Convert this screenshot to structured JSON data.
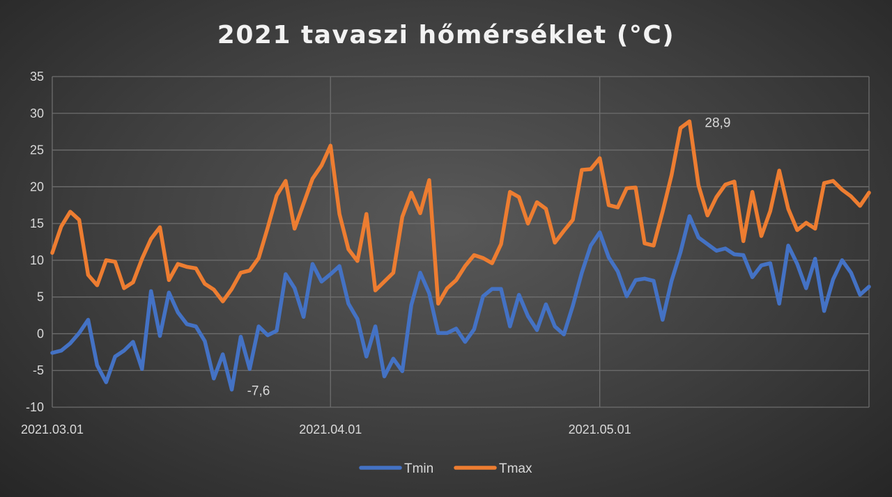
{
  "chart_data": {
    "type": "line",
    "title": "2021 tavaszi hőmérséklet (°C)",
    "xlabel": "",
    "ylabel": "",
    "ylim": [
      -10,
      35
    ],
    "y_ticks": [
      "35",
      "30",
      "25",
      "20",
      "15",
      "10",
      "5",
      "0",
      "-5",
      "-10"
    ],
    "x_range": [
      "2021.03.01",
      "2021.05.31"
    ],
    "x_tick_labels": [
      "2021.03.01",
      "2021.04.01",
      "2021.05.01"
    ],
    "grid": true,
    "legend_position": "bottom",
    "colors": {
      "Tmin": "#4472c4",
      "Tmax": "#ed7d31"
    },
    "series": [
      {
        "name": "Tmin",
        "values": [
          -2.6,
          -2.3,
          -1.3,
          0.1,
          1.9,
          -4.3,
          -6.6,
          -3.1,
          -2.3,
          -1.1,
          -4.8,
          5.8,
          -0.3,
          5.6,
          2.9,
          1.3,
          1.0,
          -1.0,
          -6.1,
          -2.8,
          -7.6,
          -0.4,
          -4.8,
          1.0,
          -0.2,
          0.4,
          8.1,
          6.2,
          2.3,
          9.5,
          7.1,
          8.1,
          9.2,
          4.1,
          2.0,
          -3.1,
          1.0,
          -5.8,
          -3.4,
          -5.1,
          3.9,
          8.3,
          5.5,
          0.1,
          0.1,
          0.7,
          -1.1,
          0.6,
          5.1,
          6.1,
          6.1,
          1.0,
          5.3,
          2.4,
          0.5,
          4.0,
          1.0,
          -0.1,
          3.8,
          8.3,
          12.0,
          13.8,
          10.4,
          8.5,
          5.1,
          7.3,
          7.5,
          7.2,
          1.9,
          7.2,
          11.1,
          16.0,
          13.1,
          12.2,
          11.3,
          11.6,
          10.8,
          10.7,
          7.7,
          9.3,
          9.6,
          4.1,
          12.0,
          9.5,
          6.2,
          10.2,
          3.1,
          7.4,
          10.0,
          8.3,
          5.3,
          6.4
        ]
      },
      {
        "name": "Tmax",
        "values": [
          11.0,
          14.6,
          16.6,
          15.5,
          8.0,
          6.6,
          10.0,
          9.8,
          6.2,
          7.0,
          10.2,
          12.9,
          14.5,
          7.3,
          9.5,
          9.1,
          8.9,
          6.8,
          6.0,
          4.4,
          6.1,
          8.3,
          8.6,
          10.3,
          14.4,
          18.8,
          20.8,
          14.3,
          17.7,
          21.1,
          22.9,
          25.6,
          16.3,
          11.5,
          9.9,
          16.3,
          5.9,
          7.1,
          8.3,
          15.9,
          19.2,
          16.4,
          20.9,
          4.1,
          6.2,
          7.3,
          9.2,
          10.7,
          10.3,
          9.6,
          12.2,
          19.3,
          18.6,
          15.0,
          17.9,
          17.0,
          12.4,
          14.0,
          15.5,
          22.3,
          22.4,
          23.9,
          17.5,
          17.2,
          19.8,
          19.9,
          12.3,
          12.0,
          16.6,
          21.6,
          28.0,
          28.9,
          20.2,
          16.1,
          18.6,
          20.3,
          20.7,
          12.6,
          19.3,
          13.3,
          16.7,
          22.2,
          17.0,
          14.1,
          15.1,
          14.3,
          20.5,
          20.8,
          19.6,
          18.7,
          17.4,
          19.2
        ]
      }
    ],
    "annotations": [
      {
        "text": "-7,6",
        "series": "Tmin",
        "x": "2021.03.21",
        "y": -7.6
      },
      {
        "text": "28,9",
        "series": "Tmax",
        "x": "2021.05.11",
        "y": 28.9
      }
    ]
  }
}
